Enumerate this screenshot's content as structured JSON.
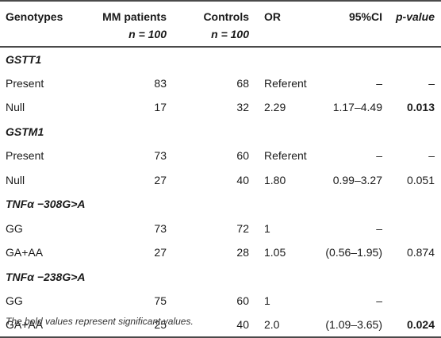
{
  "header": {
    "genotypes": "Genotypes",
    "mm_patients": "MM patients",
    "mm_n": "n = 100",
    "controls": "Controls",
    "controls_n": "n = 100",
    "or": "OR",
    "ci": "95%CI",
    "pvalue": "p-value"
  },
  "rows": [
    {
      "section": "GSTT1"
    },
    {
      "genotype": "Present",
      "mm": "83",
      "controls": "68",
      "or": "Referent",
      "ci": "–",
      "p": "–",
      "p_bold": false
    },
    {
      "genotype": "Null",
      "mm": "17",
      "controls": "32",
      "or": "2.29",
      "ci": "1.17–4.49",
      "p": "0.013",
      "p_bold": true
    },
    {
      "section": "GSTM1"
    },
    {
      "genotype": "Present",
      "mm": "73",
      "controls": "60",
      "or": "Referent",
      "ci": "–",
      "p": "–",
      "p_bold": false
    },
    {
      "genotype": "Null",
      "mm": "27",
      "controls": "40",
      "or": "1.80",
      "ci": "0.99–3.27",
      "p": "0.051",
      "p_bold": false
    },
    {
      "section": "TNFα −308G>A"
    },
    {
      "genotype": "GG",
      "mm": "73",
      "controls": "72",
      "or": "1",
      "ci": "–",
      "p": "",
      "p_bold": false
    },
    {
      "genotype": "GA+AA",
      "mm": "27",
      "controls": "28",
      "or": "1.05",
      "ci": "(0.56–1.95)",
      "p": "0.874",
      "p_bold": false
    },
    {
      "section": "TNFα −238G>A"
    },
    {
      "genotype": "GG",
      "mm": "75",
      "controls": "60",
      "or": "1",
      "ci": "–",
      "p": "",
      "p_bold": false
    },
    {
      "genotype": "GA+AA",
      "mm": "25",
      "controls": "40",
      "or": "2.0",
      "ci": "(1.09–3.65)",
      "p": "0.024",
      "p_bold": true
    }
  ],
  "footnote": "The bold values represent significant values."
}
